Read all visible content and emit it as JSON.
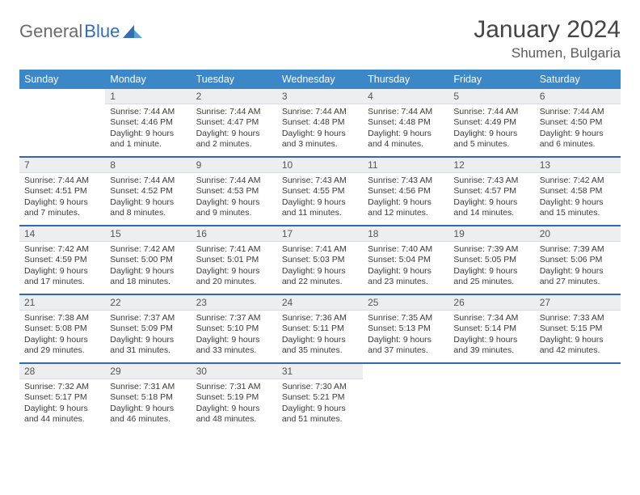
{
  "logo": {
    "part1": "General",
    "part2": "Blue",
    "mark_color": "#2f6fb3"
  },
  "title": "January 2024",
  "location": "Shumen, Bulgaria",
  "colors": {
    "header_bg": "#3b87c8",
    "header_text": "#ffffff",
    "daynum_bg": "#eceef0",
    "week_sep": "#2f6bab",
    "body_text": "#3a3a3a",
    "title_text": "#454545"
  },
  "day_headers": [
    "Sunday",
    "Monday",
    "Tuesday",
    "Wednesday",
    "Thursday",
    "Friday",
    "Saturday"
  ],
  "weeks": [
    [
      {
        "num": "",
        "sunrise": "",
        "sunset": "",
        "daylight": ""
      },
      {
        "num": "1",
        "sunrise": "7:44 AM",
        "sunset": "4:46 PM",
        "daylight": "9 hours and 1 minute."
      },
      {
        "num": "2",
        "sunrise": "7:44 AM",
        "sunset": "4:47 PM",
        "daylight": "9 hours and 2 minutes."
      },
      {
        "num": "3",
        "sunrise": "7:44 AM",
        "sunset": "4:48 PM",
        "daylight": "9 hours and 3 minutes."
      },
      {
        "num": "4",
        "sunrise": "7:44 AM",
        "sunset": "4:48 PM",
        "daylight": "9 hours and 4 minutes."
      },
      {
        "num": "5",
        "sunrise": "7:44 AM",
        "sunset": "4:49 PM",
        "daylight": "9 hours and 5 minutes."
      },
      {
        "num": "6",
        "sunrise": "7:44 AM",
        "sunset": "4:50 PM",
        "daylight": "9 hours and 6 minutes."
      }
    ],
    [
      {
        "num": "7",
        "sunrise": "7:44 AM",
        "sunset": "4:51 PM",
        "daylight": "9 hours and 7 minutes."
      },
      {
        "num": "8",
        "sunrise": "7:44 AM",
        "sunset": "4:52 PM",
        "daylight": "9 hours and 8 minutes."
      },
      {
        "num": "9",
        "sunrise": "7:44 AM",
        "sunset": "4:53 PM",
        "daylight": "9 hours and 9 minutes."
      },
      {
        "num": "10",
        "sunrise": "7:43 AM",
        "sunset": "4:55 PM",
        "daylight": "9 hours and 11 minutes."
      },
      {
        "num": "11",
        "sunrise": "7:43 AM",
        "sunset": "4:56 PM",
        "daylight": "9 hours and 12 minutes."
      },
      {
        "num": "12",
        "sunrise": "7:43 AM",
        "sunset": "4:57 PM",
        "daylight": "9 hours and 14 minutes."
      },
      {
        "num": "13",
        "sunrise": "7:42 AM",
        "sunset": "4:58 PM",
        "daylight": "9 hours and 15 minutes."
      }
    ],
    [
      {
        "num": "14",
        "sunrise": "7:42 AM",
        "sunset": "4:59 PM",
        "daylight": "9 hours and 17 minutes."
      },
      {
        "num": "15",
        "sunrise": "7:42 AM",
        "sunset": "5:00 PM",
        "daylight": "9 hours and 18 minutes."
      },
      {
        "num": "16",
        "sunrise": "7:41 AM",
        "sunset": "5:01 PM",
        "daylight": "9 hours and 20 minutes."
      },
      {
        "num": "17",
        "sunrise": "7:41 AM",
        "sunset": "5:03 PM",
        "daylight": "9 hours and 22 minutes."
      },
      {
        "num": "18",
        "sunrise": "7:40 AM",
        "sunset": "5:04 PM",
        "daylight": "9 hours and 23 minutes."
      },
      {
        "num": "19",
        "sunrise": "7:39 AM",
        "sunset": "5:05 PM",
        "daylight": "9 hours and 25 minutes."
      },
      {
        "num": "20",
        "sunrise": "7:39 AM",
        "sunset": "5:06 PM",
        "daylight": "9 hours and 27 minutes."
      }
    ],
    [
      {
        "num": "21",
        "sunrise": "7:38 AM",
        "sunset": "5:08 PM",
        "daylight": "9 hours and 29 minutes."
      },
      {
        "num": "22",
        "sunrise": "7:37 AM",
        "sunset": "5:09 PM",
        "daylight": "9 hours and 31 minutes."
      },
      {
        "num": "23",
        "sunrise": "7:37 AM",
        "sunset": "5:10 PM",
        "daylight": "9 hours and 33 minutes."
      },
      {
        "num": "24",
        "sunrise": "7:36 AM",
        "sunset": "5:11 PM",
        "daylight": "9 hours and 35 minutes."
      },
      {
        "num": "25",
        "sunrise": "7:35 AM",
        "sunset": "5:13 PM",
        "daylight": "9 hours and 37 minutes."
      },
      {
        "num": "26",
        "sunrise": "7:34 AM",
        "sunset": "5:14 PM",
        "daylight": "9 hours and 39 minutes."
      },
      {
        "num": "27",
        "sunrise": "7:33 AM",
        "sunset": "5:15 PM",
        "daylight": "9 hours and 42 minutes."
      }
    ],
    [
      {
        "num": "28",
        "sunrise": "7:32 AM",
        "sunset": "5:17 PM",
        "daylight": "9 hours and 44 minutes."
      },
      {
        "num": "29",
        "sunrise": "7:31 AM",
        "sunset": "5:18 PM",
        "daylight": "9 hours and 46 minutes."
      },
      {
        "num": "30",
        "sunrise": "7:31 AM",
        "sunset": "5:19 PM",
        "daylight": "9 hours and 48 minutes."
      },
      {
        "num": "31",
        "sunrise": "7:30 AM",
        "sunset": "5:21 PM",
        "daylight": "9 hours and 51 minutes."
      },
      {
        "num": "",
        "sunrise": "",
        "sunset": "",
        "daylight": ""
      },
      {
        "num": "",
        "sunrise": "",
        "sunset": "",
        "daylight": ""
      },
      {
        "num": "",
        "sunrise": "",
        "sunset": "",
        "daylight": ""
      }
    ]
  ]
}
